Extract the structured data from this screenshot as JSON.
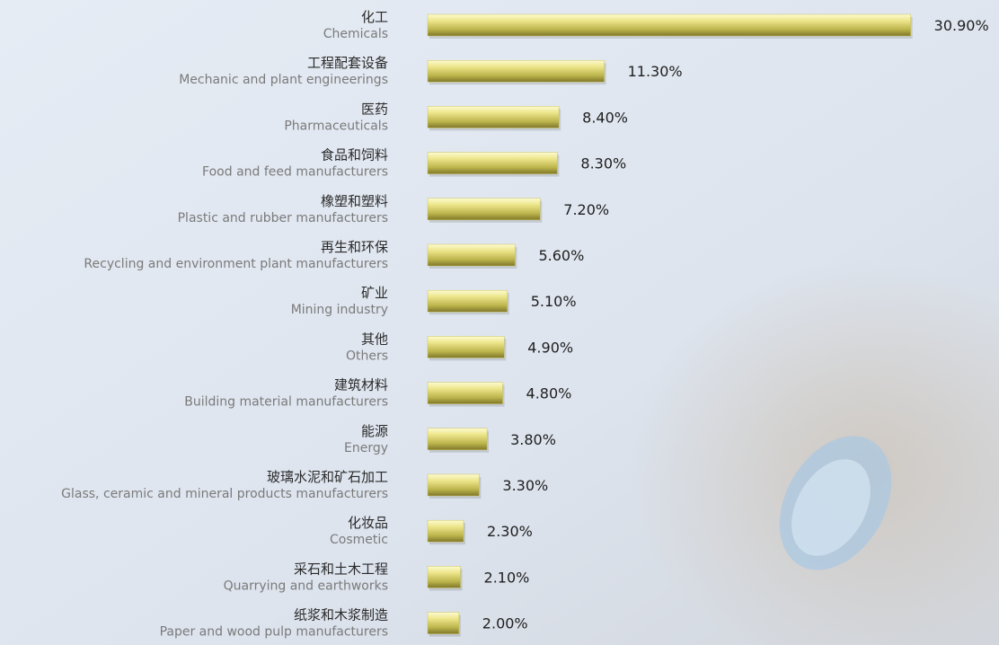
{
  "chart_data": {
    "type": "bar",
    "orientation": "horizontal",
    "categories": [
      "化工",
      "工程配套设备",
      "医药",
      "食品和饲料",
      "橡塑和塑料",
      "再生和环保",
      "矿业",
      "其他",
      "建筑材料",
      "能源",
      "玻璃水泥和矿石加工",
      "化妆品",
      "采石和土木工程",
      "纸浆和木浆制造"
    ],
    "categories_en": [
      "Chemicals",
      "Mechanic and plant engineerings",
      "Pharmaceuticals",
      "Food and feed manufacturers",
      "Plastic and rubber manufacturers",
      "Recycling and environment plant manufacturers",
      "Mining industry",
      "Others",
      "Building material manufacturers",
      "Energy",
      "Glass, ceramic and mineral products manufacturers",
      "Cosmetic",
      "Quarrying and earthworks",
      "Paper and wood pulp manufacturers"
    ],
    "values": [
      30.9,
      11.3,
      8.4,
      8.3,
      7.2,
      5.6,
      5.1,
      4.9,
      4.8,
      3.8,
      3.3,
      2.3,
      2.1,
      2.0
    ],
    "value_labels": [
      "30.90%",
      "11.30%",
      "8.40%",
      "8.30%",
      "7.20%",
      "5.60%",
      "5.10%",
      "4.90%",
      "4.80%",
      "3.80%",
      "3.30%",
      "2.30%",
      "2.10%",
      "2.00%"
    ],
    "color": "#c9c25c"
  }
}
